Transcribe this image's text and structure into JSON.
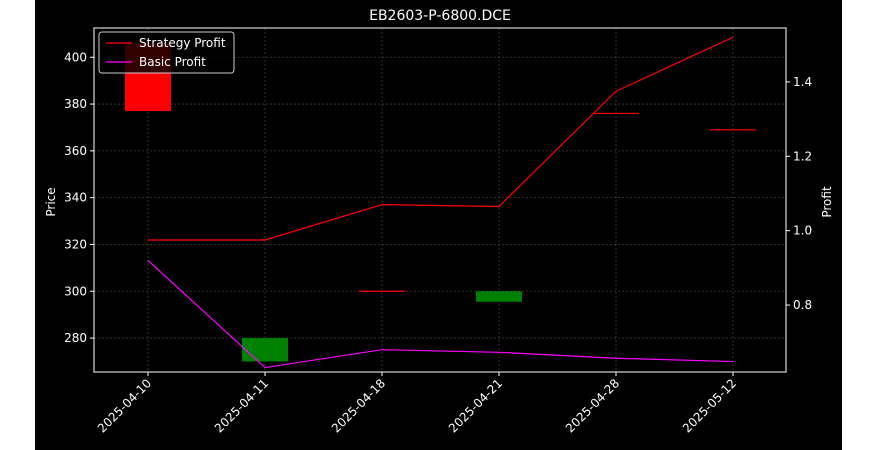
{
  "chart_data": {
    "type": "candlestick",
    "title": "EB2603-P-6800.DCE",
    "xlabel": "",
    "ylabel": "Price",
    "y2label": "Profit",
    "grid": true,
    "legend_position": "upper-left",
    "categories": [
      "2025-04-10",
      "2025-04-11",
      "2025-04-18",
      "2025-04-21",
      "2025-04-28",
      "2025-05-12"
    ],
    "ylim": [
      265.5,
      412.5
    ],
    "y2lim": [
      0.62,
      1.545
    ],
    "yticks": [
      280,
      300,
      320,
      340,
      360,
      380,
      400
    ],
    "y2ticks": [
      "0.8",
      "1.0",
      "1.2",
      "1.4"
    ],
    "candles": [
      {
        "date": "2025-04-10",
        "open": 377,
        "close": 406,
        "color": "#ff0000"
      },
      {
        "date": "2025-04-11",
        "open": 280,
        "close": 270,
        "color": "#008000"
      },
      {
        "date": "2025-04-18",
        "open": 300,
        "close": 300,
        "color": "#ff0000"
      },
      {
        "date": "2025-04-21",
        "open": 300,
        "close": 295.5,
        "color": "#008000"
      },
      {
        "date": "2025-04-28",
        "open": 376,
        "close": 376,
        "color": "#ff0000"
      },
      {
        "date": "2025-05-12",
        "open": 369,
        "close": 369,
        "color": "#ff0000"
      }
    ],
    "series": [
      {
        "name": "Strategy Profit",
        "color": "#ff0000",
        "values": [
          0.975,
          0.975,
          1.07,
          1.065,
          1.375,
          1.52
        ]
      },
      {
        "name": "Basic Profit",
        "color": "#ff00ff",
        "values": [
          0.92,
          0.632,
          0.68,
          0.673,
          0.657,
          0.648
        ]
      }
    ]
  }
}
